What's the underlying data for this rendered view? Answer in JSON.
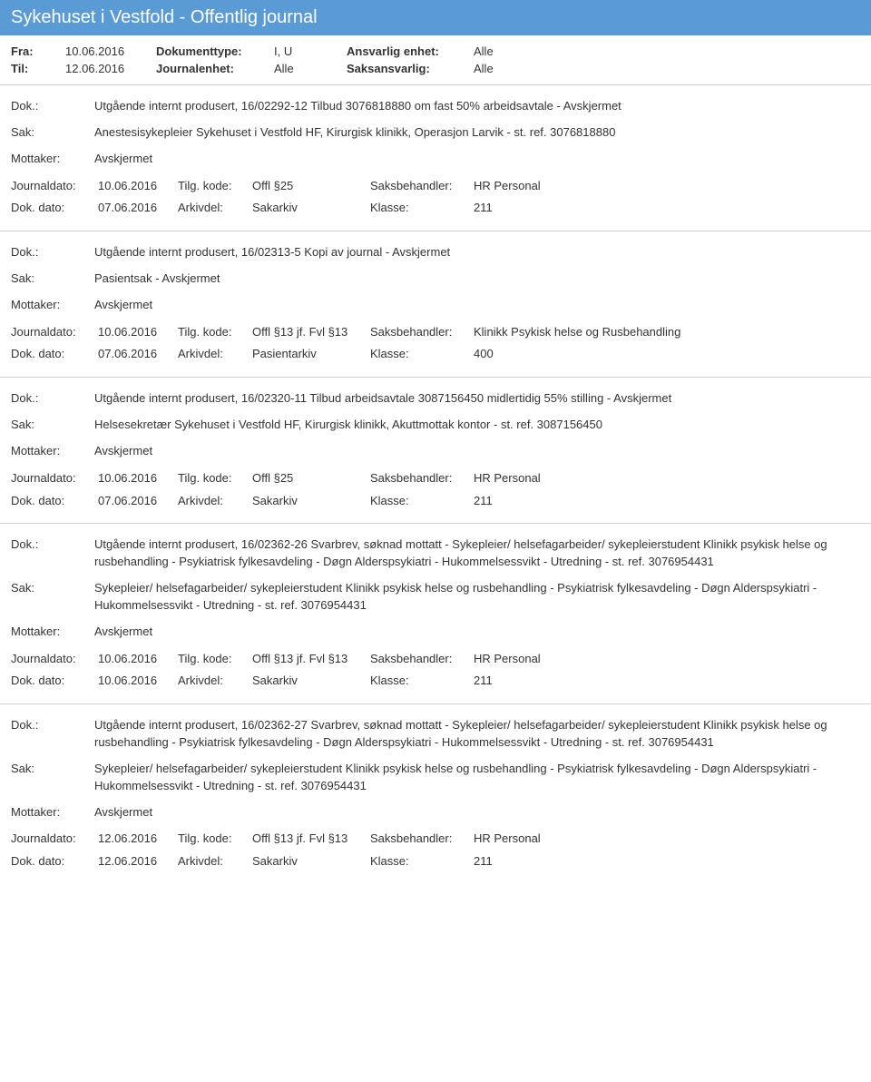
{
  "header": {
    "title": "Sykehuset i Vestfold - Offentlig journal"
  },
  "meta": {
    "fra_label": "Fra:",
    "fra_value": "10.06.2016",
    "til_label": "Til:",
    "til_value": "12.06.2016",
    "dokumenttype_label": "Dokumenttype:",
    "dokumenttype_value": "I, U",
    "journalenhet_label": "Journalenhet:",
    "journalenhet_value": "Alle",
    "ansvarlig_label": "Ansvarlig enhet:",
    "ansvarlig_value": "Alle",
    "saksansvarlig_label": "Saksansvarlig:",
    "saksansvarlig_value": "Alle"
  },
  "labels": {
    "dok": "Dok.:",
    "sak": "Sak:",
    "mottaker": "Mottaker:",
    "journaldato": "Journaldato:",
    "tilgkode": "Tilg. kode:",
    "saksbehandler": "Saksbehandler:",
    "dokdato": "Dok. dato:",
    "arkivdel": "Arkivdel:",
    "klasse": "Klasse:"
  },
  "entries": [
    {
      "dok": "Utgående internt produsert, 16/02292-12 Tilbud 3076818880 om fast 50% arbeidsavtale - Avskjermet",
      "sak": "Anestesisykepleier Sykehuset i Vestfold HF, Kirurgisk klinikk, Operasjon Larvik - st. ref. 3076818880",
      "mottaker": "Avskjermet",
      "journaldato": "10.06.2016",
      "tilgkode": "Offl §25",
      "saksbehandler": "HR Personal",
      "dokdato": "07.06.2016",
      "arkivdel": "Sakarkiv",
      "klasse": "211"
    },
    {
      "dok": "Utgående internt produsert, 16/02313-5 Kopi av journal - Avskjermet",
      "sak": "Pasientsak - Avskjermet",
      "mottaker": "Avskjermet",
      "journaldato": "10.06.2016",
      "tilgkode": "Offl §13 jf. Fvl §13",
      "saksbehandler": "Klinikk Psykisk helse og Rusbehandling",
      "dokdato": "07.06.2016",
      "arkivdel": "Pasientarkiv",
      "klasse": "400"
    },
    {
      "dok": "Utgående internt produsert, 16/02320-11 Tilbud arbeidsavtale 3087156450 midlertidig 55% stilling - Avskjermet",
      "sak": "Helsesekretær Sykehuset i Vestfold HF, Kirurgisk klinikk, Akuttmottak kontor - st. ref. 3087156450",
      "mottaker": "Avskjermet",
      "journaldato": "10.06.2016",
      "tilgkode": "Offl §25",
      "saksbehandler": "HR Personal",
      "dokdato": "07.06.2016",
      "arkivdel": "Sakarkiv",
      "klasse": "211"
    },
    {
      "dok": "Utgående internt produsert, 16/02362-26 Svarbrev, søknad mottatt - Sykepleier/ helsefagarbeider/ sykepleierstudent Klinikk psykisk helse og rusbehandling - Psykiatrisk fylkesavdeling - Døgn Alderspsykiatri - Hukommelsessvikt - Utredning - st. ref. 3076954431",
      "sak": "Sykepleier/ helsefagarbeider/ sykepleierstudent Klinikk psykisk helse og rusbehandling - Psykiatrisk fylkesavdeling - Døgn Alderspsykiatri - Hukommelsessvikt - Utredning - st. ref. 3076954431",
      "mottaker": "Avskjermet",
      "journaldato": "10.06.2016",
      "tilgkode": "Offl §13 jf. Fvl §13",
      "saksbehandler": "HR Personal",
      "dokdato": "10.06.2016",
      "arkivdel": "Sakarkiv",
      "klasse": "211"
    },
    {
      "dok": "Utgående internt produsert, 16/02362-27 Svarbrev, søknad mottatt - Sykepleier/ helsefagarbeider/ sykepleierstudent Klinikk psykisk helse og rusbehandling - Psykiatrisk fylkesavdeling - Døgn Alderspsykiatri - Hukommelsessvikt - Utredning - st. ref. 3076954431",
      "sak": "Sykepleier/ helsefagarbeider/ sykepleierstudent Klinikk psykisk helse og rusbehandling - Psykiatrisk fylkesavdeling - Døgn Alderspsykiatri - Hukommelsessvikt - Utredning - st. ref. 3076954431",
      "mottaker": "Avskjermet",
      "journaldato": "12.06.2016",
      "tilgkode": "Offl §13 jf. Fvl §13",
      "saksbehandler": "HR Personal",
      "dokdato": "12.06.2016",
      "arkivdel": "Sakarkiv",
      "klasse": "211"
    }
  ]
}
